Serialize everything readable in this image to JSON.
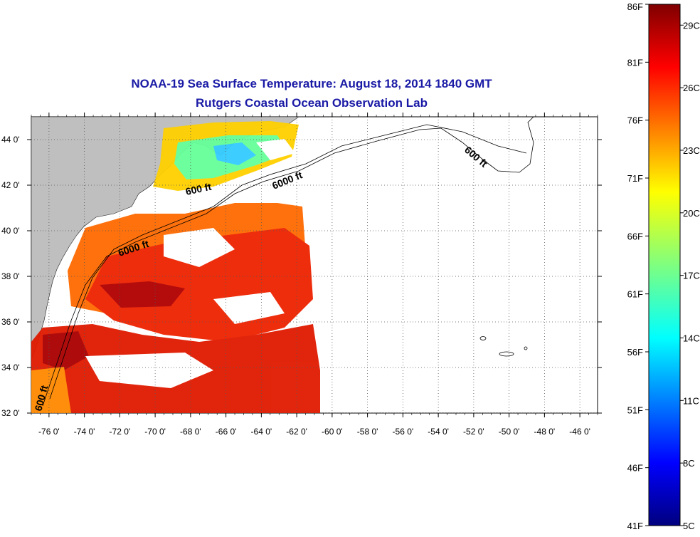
{
  "title": {
    "line1": "NOAA-19 Sea Surface Temperature:  August 18, 2014 1840 GMT",
    "line2": "Rutgers Coastal Ocean Observation Lab"
  },
  "map": {
    "lat_range": [
      32,
      45
    ],
    "lon_range": [
      -77,
      -45
    ],
    "lat_ticks": [
      "32 0'",
      "34 0'",
      "36 0'",
      "38 0'",
      "40 0'",
      "42 0'",
      "44 0'"
    ],
    "lon_ticks": [
      "-76 0'",
      "-74 0'",
      "-72 0'",
      "-70 0'",
      "-68 0'",
      "-66 0'",
      "-64 0'",
      "-62 0'",
      "-60 0'",
      "-58 0'",
      "-56 0'",
      "-54 0'",
      "-52 0'",
      "-50 0'",
      "-48 0'",
      "-46 0'"
    ],
    "land_color": "#bfbfbf",
    "grid": true,
    "contour_labels": [
      "600 ft",
      "6000 ft",
      "6000 ft",
      "600 ft",
      "600 ft"
    ]
  },
  "colorbar": {
    "fahrenheit_labels": [
      "86F",
      "81F",
      "76F",
      "71F",
      "66F",
      "61F",
      "56F",
      "51F",
      "46F",
      "41F"
    ],
    "celsius_labels": [
      "29C",
      "26C",
      "23C",
      "20C",
      "17C",
      "14C",
      "11C",
      "8C",
      "5C"
    ],
    "colormap": "jet",
    "range_f": [
      41,
      86
    ],
    "range_c": [
      5,
      30
    ]
  }
}
